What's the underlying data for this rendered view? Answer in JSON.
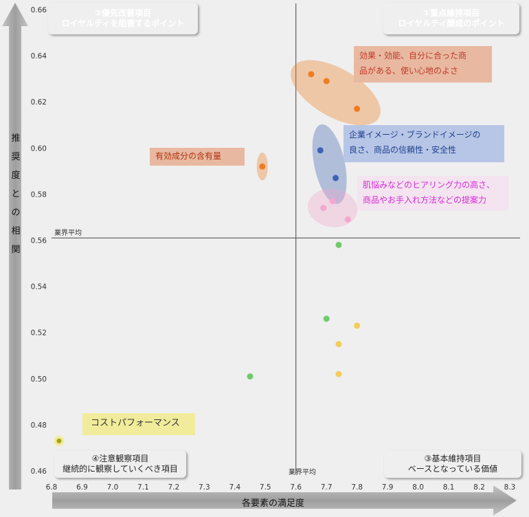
{
  "chart_data": {
    "type": "scatter",
    "xlabel": "各要素の満足度",
    "ylabel": "推奨度との相関",
    "xlim": [
      6.8,
      8.3
    ],
    "ylim": [
      0.46,
      0.66
    ],
    "xticks": [
      "6.8",
      "6.9",
      "7.0",
      "7.1",
      "7.2",
      "7.3",
      "7.4",
      "7.5",
      "7.6",
      "7.7",
      "7.8",
      "7.9",
      "8.0",
      "8.1",
      "8.2",
      "8.3"
    ],
    "yticks": [
      "0.46",
      "0.48",
      "0.50",
      "0.52",
      "0.54",
      "0.56",
      "0.58",
      "0.60",
      "0.62",
      "0.64",
      "0.66"
    ],
    "reference_lines": {
      "x": 7.6,
      "y": 0.561,
      "x_label": "業界平均",
      "y_label": "業界平均"
    },
    "points": [
      {
        "x": 7.65,
        "y": 0.632,
        "color": "#ee7d22"
      },
      {
        "x": 7.7,
        "y": 0.629,
        "color": "#ee7d22"
      },
      {
        "x": 7.8,
        "y": 0.617,
        "color": "#ee7d22"
      },
      {
        "x": 7.49,
        "y": 0.592,
        "color": "#ee7d22"
      },
      {
        "x": 7.68,
        "y": 0.599,
        "color": "#3e63b5"
      },
      {
        "x": 7.73,
        "y": 0.587,
        "color": "#3e63b5"
      },
      {
        "x": 7.72,
        "y": 0.577,
        "color": "#f4a7cf"
      },
      {
        "x": 7.69,
        "y": 0.574,
        "color": "#f4a7cf"
      },
      {
        "x": 7.77,
        "y": 0.569,
        "color": "#f4a7cf"
      },
      {
        "x": 7.74,
        "y": 0.558,
        "color": "#6fcb6a"
      },
      {
        "x": 7.7,
        "y": 0.526,
        "color": "#6fcb6a"
      },
      {
        "x": 7.8,
        "y": 0.523,
        "color": "#f5cb5c"
      },
      {
        "x": 7.74,
        "y": 0.515,
        "color": "#f5cb5c"
      },
      {
        "x": 7.74,
        "y": 0.502,
        "color": "#f5cb5c"
      },
      {
        "x": 7.45,
        "y": 0.501,
        "color": "#6fcb6a"
      },
      {
        "x": 6.8,
        "y": 0.473,
        "color": "#a7a317"
      }
    ],
    "groups": [
      {
        "x": 7.73,
        "y": 0.624,
        "rx": 0.36,
        "ry": 0.0095,
        "angle": 30,
        "color": "#ee7d22"
      },
      {
        "x": 7.71,
        "y": 0.593,
        "rx": 0.11,
        "ry": 0.016,
        "angle": -12,
        "color": "#3e63b5"
      },
      {
        "x": 7.72,
        "y": 0.574,
        "rx": 0.18,
        "ry": 0.0075,
        "angle": 8,
        "color": "#f4a7cf"
      },
      {
        "x": 7.49,
        "y": 0.592,
        "rx": 0.04,
        "ry": 0.0055,
        "angle": 0,
        "color": "#ee7d22"
      }
    ],
    "quadrants": [
      {
        "line1": "②優先改善項目",
        "line2": "ロイヤルティを阻害するポイント",
        "color": "#b85a3c"
      },
      {
        "line1": "①重点維持項目",
        "line2": "ロイヤルティ醸成のポイント",
        "color": "#8aa35a"
      },
      {
        "line1": "④注意観察項目",
        "line2": "継続的に観察していくべき項目",
        "color": "#d5d5d5"
      },
      {
        "line1": "③基本維持項目",
        "line2": "ベースとなっている価値",
        "color": "#d5d5d5"
      }
    ],
    "annotations": [
      {
        "text1": "効果・効能、自分に合った商",
        "text2": "品がある、使い心地のよさ",
        "color": "#c0392b",
        "bg": "#e8b9a0"
      },
      {
        "text1": "企業イメージ・ブランドイメージの",
        "text2": "良さ、商品の信頼性・安全性",
        "color": "#1f3f8f",
        "bg": "#b7c6e6"
      },
      {
        "text1": "肌悩みなどのヒアリング力の高さ、",
        "text2": "商品やお手入れ方法などの提案力",
        "color": "#d62ad6",
        "bg": "#f3e4f0"
      },
      {
        "text1": "有効成分の含有量",
        "text2": "",
        "color": "#b03010",
        "bg": "#e8b9a0"
      },
      {
        "text1": "コストパフォーマンス",
        "text2": "",
        "color": "#333333",
        "bg": "#f1ec9b"
      }
    ]
  }
}
